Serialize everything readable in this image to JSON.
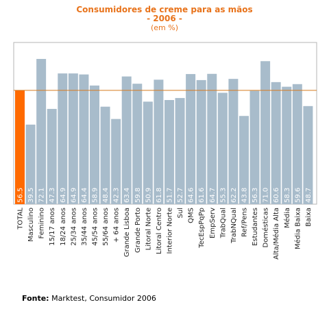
{
  "chart_data": {
    "type": "bar",
    "title": "Consumidores de creme para as mãos",
    "subtitle": "- 2006 -",
    "unit": "(em %)",
    "categories": [
      "TOTAL",
      "Masculino",
      "Feminino",
      "15/17 anos",
      "18/24 anos",
      "25/34 anos",
      "35/44 anos",
      "45/54 anos",
      "55/64 anos",
      "+ 64 anos",
      "Grande Lisboa",
      "Grande Porto",
      "Litoral Norte",
      "Litoral Centro",
      "Interior Norte",
      "Sul",
      "QMS",
      "TecEspPqPp",
      "EmpServ",
      "TrabQual",
      "TrabNQual",
      "Ref/Pens",
      "Estudantes",
      "Domésticas",
      "Alta/Média Alta",
      "Média",
      "Média Baixa",
      "Baixa"
    ],
    "values": [
      56.5,
      39.5,
      72.1,
      47.3,
      64.9,
      64.9,
      64.4,
      58.9,
      48.4,
      42.3,
      63.4,
      59.8,
      50.9,
      61.8,
      51.7,
      52.7,
      64.6,
      61.6,
      64.7,
      55.3,
      62.2,
      43.8,
      56.3,
      71.0,
      60.6,
      58.3,
      59.6,
      48.7
    ],
    "value_labels": [
      "56.5",
      "39.5",
      "72.1",
      "47.3",
      "64.9",
      "64.9",
      "64.4",
      "58.9",
      "48.4",
      "42.3",
      "63.4",
      "59.8",
      "50.9",
      "61.8",
      "51.7",
      "52.7",
      "64.6",
      "61.6",
      "64.7",
      "55.3",
      "62.2",
      "43.8",
      "56.3",
      "71.0",
      "60.6",
      "58.3",
      "59.6",
      "48.7"
    ],
    "highlight_index": 0,
    "reference_line": 56.5,
    "ylim": [
      0,
      80
    ],
    "grid": false,
    "colors": {
      "bar": "#a8bccb",
      "highlight": "#ff6a00",
      "reference_line": "#d77a1e",
      "frame": "#b5b5b5",
      "value_label": "#ffffff",
      "title": "#e8731b"
    }
  },
  "source": {
    "label": "Fonte:",
    "text": "Marktest, Consumidor 2006"
  }
}
